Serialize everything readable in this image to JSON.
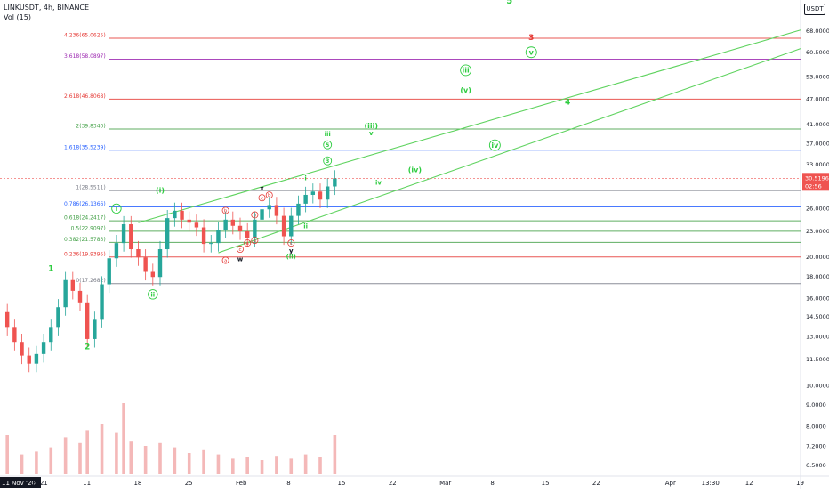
{
  "header": {
    "symbol": "LINKUSDT, 4h, BINANCE",
    "volume": "Vol (15)"
  },
  "currency_button": "USDT",
  "price_tag": {
    "value": "30.5196",
    "countdown": "02:56"
  },
  "colors": {
    "bull": "#26a69a",
    "bear": "#ef5350",
    "wave": "#2ecc40",
    "fib_red": "#e53935",
    "fib_purple": "#9c27b0",
    "fib_blue": "#2962ff",
    "fib_green": "#43a047",
    "fib_gray": "#787b86",
    "channel": "#5fd35f"
  },
  "chart_data": {
    "type": "candlestick",
    "title": "",
    "xlabel": "",
    "ylabel": "",
    "y_scale": "log",
    "ylim": [
      6.1,
      80
    ],
    "y_ticks": [
      "68.0000",
      "60.5000",
      "53.0000",
      "47.0000",
      "41.0000",
      "37.0000",
      "33.0000",
      "29.5000",
      "26.0000",
      "23.0000",
      "20.0000",
      "18.0000",
      "16.0000",
      "14.5000",
      "13.0000",
      "11.5000",
      "10.0000",
      "9.0000",
      "8.0000",
      "7.2000",
      "6.5000"
    ],
    "x_ticks": [
      {
        "label": "11 Nov '20",
        "date": "2020-12-31"
      },
      {
        "label": "0",
        "date": "2021-01-01"
      },
      {
        "label": "2021",
        "date": "2021-01-04"
      },
      {
        "label": "11",
        "date": "2021-01-11"
      },
      {
        "label": "18",
        "date": "2021-01-18"
      },
      {
        "label": "25",
        "date": "2021-01-25"
      },
      {
        "label": "Feb",
        "date": "2021-02-01"
      },
      {
        "label": "8",
        "date": "2021-02-08"
      },
      {
        "label": "15",
        "date": "2021-02-15"
      },
      {
        "label": "22",
        "date": "2021-02-22"
      },
      {
        "label": "Mar",
        "date": "2021-03-01"
      },
      {
        "label": "8",
        "date": "2021-03-08"
      },
      {
        "label": "15",
        "date": "2021-03-15"
      },
      {
        "label": "22",
        "date": "2021-03-22"
      },
      {
        "label": "Apr",
        "date": "2021-04-01"
      },
      {
        "label": "13:30",
        "date": "2021-04-06"
      },
      {
        "label": "12",
        "date": "2021-04-12"
      },
      {
        "label": "19",
        "date": "2021-04-19"
      }
    ],
    "price_series": [
      [
        "2020-12-29",
        14.8
      ],
      [
        "2020-12-31",
        13.6
      ],
      [
        "2021-01-01",
        12.6
      ],
      [
        "2021-01-02",
        11.7
      ],
      [
        "2021-01-03",
        11.2
      ],
      [
        "2021-01-04",
        11.8
      ],
      [
        "2021-01-05",
        12.6
      ],
      [
        "2021-01-06",
        13.6
      ],
      [
        "2021-01-07",
        15.2
      ],
      [
        "2021-01-08",
        17.6
      ],
      [
        "2021-01-09",
        16.6
      ],
      [
        "2021-01-10",
        15.6
      ],
      [
        "2021-01-11",
        12.8
      ],
      [
        "2021-01-12",
        14.2
      ],
      [
        "2021-01-13",
        17.2
      ],
      [
        "2021-01-14",
        19.8
      ],
      [
        "2021-01-15",
        21.5
      ],
      [
        "2021-01-16",
        23.8
      ],
      [
        "2021-01-17",
        20.8
      ],
      [
        "2021-01-18",
        19.9
      ],
      [
        "2021-01-19",
        18.4
      ],
      [
        "2021-01-20",
        17.9
      ],
      [
        "2021-01-21",
        20.8
      ],
      [
        "2021-01-22",
        24.6
      ],
      [
        "2021-01-23",
        25.6
      ],
      [
        "2021-01-24",
        24.4
      ],
      [
        "2021-01-25",
        24.0
      ],
      [
        "2021-01-26",
        23.4
      ],
      [
        "2021-01-27",
        21.4
      ],
      [
        "2021-01-28",
        21.5
      ],
      [
        "2021-01-29",
        23.1
      ],
      [
        "2021-01-30",
        24.4
      ],
      [
        "2021-01-31",
        23.6
      ],
      [
        "2021-02-01",
        22.9
      ],
      [
        "2021-02-02",
        22.1
      ],
      [
        "2021-02-03",
        24.4
      ],
      [
        "2021-02-04",
        25.8
      ],
      [
        "2021-02-05",
        26.4
      ],
      [
        "2021-02-06",
        24.9
      ],
      [
        "2021-02-07",
        22.3
      ],
      [
        "2021-02-08",
        24.9
      ],
      [
        "2021-02-09",
        26.6
      ],
      [
        "2021-02-10",
        27.9
      ],
      [
        "2021-02-11",
        28.4
      ],
      [
        "2021-02-12",
        27.2
      ],
      [
        "2021-02-13",
        29.2
      ],
      [
        "2021-02-14",
        30.5
      ]
    ],
    "volume_series": [
      [
        "2020-12-29",
        0.22
      ],
      [
        "2020-12-31",
        0.55
      ],
      [
        "2021-01-02",
        0.28
      ],
      [
        "2021-01-04",
        0.32
      ],
      [
        "2021-01-06",
        0.38
      ],
      [
        "2021-01-08",
        0.52
      ],
      [
        "2021-01-10",
        0.44
      ],
      [
        "2021-01-11",
        0.62
      ],
      [
        "2021-01-13",
        0.7
      ],
      [
        "2021-01-15",
        0.58
      ],
      [
        "2021-01-16",
        1.0
      ],
      [
        "2021-01-17",
        0.46
      ],
      [
        "2021-01-19",
        0.4
      ],
      [
        "2021-01-21",
        0.44
      ],
      [
        "2021-01-23",
        0.38
      ],
      [
        "2021-01-25",
        0.3
      ],
      [
        "2021-01-27",
        0.34
      ],
      [
        "2021-01-29",
        0.28
      ],
      [
        "2021-01-31",
        0.22
      ],
      [
        "2021-02-02",
        0.24
      ],
      [
        "2021-02-04",
        0.2
      ],
      [
        "2021-02-06",
        0.26
      ],
      [
        "2021-02-08",
        0.22
      ],
      [
        "2021-02-10",
        0.28
      ],
      [
        "2021-02-12",
        0.24
      ],
      [
        "2021-02-14",
        0.55
      ]
    ],
    "fib_levels": [
      {
        "label": "4.236(65.0625)",
        "value": 65.0625,
        "color": "#e53935"
      },
      {
        "label": "3.618(58.0897)",
        "value": 58.0897,
        "color": "#9c27b0"
      },
      {
        "label": "2.618(46.8068)",
        "value": 46.8068,
        "color": "#e53935"
      },
      {
        "label": "2(39.8340)",
        "value": 39.834,
        "color": "#43a047"
      },
      {
        "label": "1.618(35.5239)",
        "value": 35.5239,
        "color": "#2962ff"
      },
      {
        "label": "1(28.5511)",
        "value": 28.5511,
        "color": "#787b86"
      },
      {
        "label": "0.786(26.1366)",
        "value": 26.1366,
        "color": "#2962ff"
      },
      {
        "label": "0.618(24.2417)",
        "value": 24.2417,
        "color": "#43a047"
      },
      {
        "label": "0.5(22.9097)",
        "value": 22.9097,
        "color": "#43a047"
      },
      {
        "label": "0.382(21.5783)",
        "value": 21.5783,
        "color": "#43a047"
      },
      {
        "label": "0.236(19.9395)",
        "value": 19.9395,
        "color": "#e53935"
      },
      {
        "label": "0(17.2682)",
        "value": 17.2682,
        "color": "#787b86"
      }
    ],
    "channel_lines": [
      {
        "from": [
          "2021-01-18",
          24.0
        ],
        "to": [
          "2021-04-19",
          68.0
        ]
      },
      {
        "from": [
          "2021-01-29",
          20.4
        ],
        "to": [
          "2021-04-19",
          61.5
        ]
      }
    ],
    "wave_labels": [
      {
        "text": "5",
        "date": "2021-03-10",
        "price": 78.5,
        "color": "#2ecc40",
        "size": 10
      },
      {
        "text": "3",
        "date": "2021-03-13",
        "price": 64.5,
        "color": "#e53935",
        "size": 9
      },
      {
        "text": "v",
        "date": "2021-03-13",
        "price": 59.5,
        "color": "#2ecc40",
        "size": 8,
        "circle": true
      },
      {
        "text": "iii",
        "date": "2021-03-04",
        "price": 54.0,
        "color": "#2ecc40",
        "size": 8,
        "circle": true
      },
      {
        "text": "(v)",
        "date": "2021-03-04",
        "price": 48.5,
        "color": "#2ecc40",
        "size": 8
      },
      {
        "text": "4",
        "date": "2021-03-18",
        "price": 45.5,
        "color": "#2ecc40",
        "size": 9
      },
      {
        "text": "(iii)",
        "date": "2021-02-19",
        "price": 40.0,
        "color": "#2ecc40",
        "size": 8
      },
      {
        "text": "v",
        "date": "2021-02-19",
        "price": 38.5,
        "color": "#2ecc40",
        "size": 7
      },
      {
        "text": "iii",
        "date": "2021-02-13",
        "price": 38.3,
        "color": "#2ecc40",
        "size": 7
      },
      {
        "text": "5",
        "date": "2021-02-13",
        "price": 36.2,
        "color": "#2ecc40",
        "size": 6,
        "circle": true
      },
      {
        "text": "iv",
        "date": "2021-03-08",
        "price": 36.0,
        "color": "#2ecc40",
        "size": 8,
        "circle": true
      },
      {
        "text": "(iv)",
        "date": "2021-02-25",
        "price": 31.5,
        "color": "#2ecc40",
        "size": 8
      },
      {
        "text": "iv",
        "date": "2021-02-20",
        "price": 29.5,
        "color": "#2ecc40",
        "size": 7
      },
      {
        "text": "3",
        "date": "2021-02-13",
        "price": 33.2,
        "color": "#2ecc40",
        "size": 6,
        "circle": true
      },
      {
        "text": "i",
        "date": "2021-02-10",
        "price": 30.2,
        "color": "#2ecc40",
        "size": 7
      },
      {
        "text": "(i)",
        "date": "2021-01-21",
        "price": 28.2,
        "color": "#2ecc40",
        "size": 8
      },
      {
        "text": "x",
        "date": "2021-02-04",
        "price": 28.6,
        "color": "#131722",
        "size": 7
      },
      {
        "text": "ii",
        "date": "2021-02-10",
        "price": 23.3,
        "color": "#2ecc40",
        "size": 7
      },
      {
        "text": "i",
        "date": "2021-01-15",
        "price": 25.6,
        "color": "#2ecc40",
        "size": 7,
        "circle": true
      },
      {
        "text": "1",
        "date": "2021-01-06",
        "price": 18.5,
        "color": "#2ecc40",
        "size": 9
      },
      {
        "text": "2",
        "date": "2021-01-11",
        "price": 12.1,
        "color": "#2ecc40",
        "size": 9
      },
      {
        "text": "ii",
        "date": "2021-01-20",
        "price": 16.1,
        "color": "#2ecc40",
        "size": 7,
        "circle": true
      },
      {
        "text": "w",
        "date": "2021-02-01",
        "price": 19.5,
        "color": "#131722",
        "size": 7
      },
      {
        "text": "y",
        "date": "2021-02-08",
        "price": 20.4,
        "color": "#131722",
        "size": 7
      },
      {
        "text": "(ii)",
        "date": "2021-02-08",
        "price": 19.8,
        "color": "#2ecc40",
        "size": 7
      }
    ],
    "abc_labels": [
      {
        "text": "a",
        "date": "2021-01-30",
        "price": 19.4
      },
      {
        "text": "b",
        "date": "2021-01-30",
        "price": 25.4
      },
      {
        "text": "c",
        "date": "2021-02-01",
        "price": 20.6
      },
      {
        "text": "a",
        "date": "2021-02-02",
        "price": 21.3
      },
      {
        "text": "b",
        "date": "2021-02-03",
        "price": 24.8
      },
      {
        "text": "c",
        "date": "2021-02-04",
        "price": 27.2
      },
      {
        "text": "a",
        "date": "2021-02-03",
        "price": 21.6
      },
      {
        "text": "b",
        "date": "2021-02-05",
        "price": 27.6
      },
      {
        "text": "c",
        "date": "2021-02-08",
        "price": 21.3
      }
    ]
  }
}
